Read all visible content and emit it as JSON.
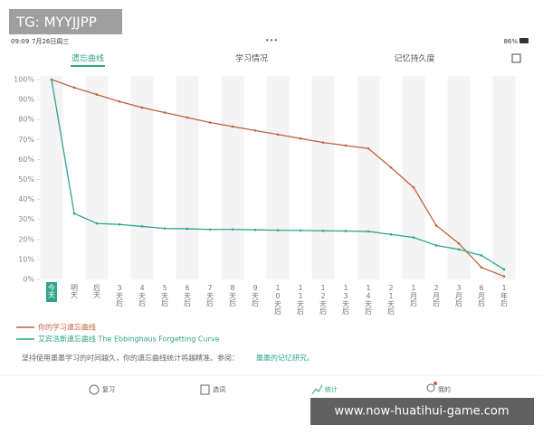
{
  "watermark_top": "TG: MYYJJPP",
  "watermark_bottom": "www.now-huatihui-game.com",
  "status_bar": {
    "time": "09:09",
    "date": "7月26日周三",
    "dots": "•••",
    "battery": "86%"
  },
  "tabs": [
    "遗忘曲线",
    "学习情况",
    "记忆持久度"
  ],
  "chart_data": {
    "type": "line",
    "categories": [
      "今天",
      "明天",
      "后天",
      "3天后",
      "4天后",
      "5天后",
      "6天后",
      "7天后",
      "8天后",
      "9天后",
      "10天后",
      "11天后",
      "12天后",
      "13天后",
      "14天后",
      "21天后",
      "1月后",
      "2月后",
      "3月后",
      "6月后",
      "1年后"
    ],
    "series": [
      {
        "name": "你的学习遗忘曲线",
        "color": "#c0643f",
        "values": [
          100,
          96,
          92.5,
          89,
          86,
          83.5,
          81,
          78.5,
          76.5,
          74.5,
          72.5,
          70.5,
          68.5,
          67,
          65.5,
          56,
          46,
          27,
          18,
          6,
          1.5
        ]
      },
      {
        "name": "艾宾浩斯遗忘曲线 The Ebbinghaus Forgetting Curve",
        "color": "#2fa58a",
        "values": [
          100,
          33,
          28,
          27.5,
          26.5,
          25.5,
          25.3,
          25,
          25,
          24.8,
          24.6,
          24.5,
          24.3,
          24.2,
          24,
          22.5,
          21,
          17,
          15,
          12,
          5
        ]
      }
    ],
    "ylim": [
      0,
      100
    ],
    "yticks": [
      {
        "value": 0,
        "label": "0%"
      },
      {
        "value": 10,
        "label": "10%"
      },
      {
        "value": 20,
        "label": "20%"
      },
      {
        "value": 30,
        "label": "30%"
      },
      {
        "value": 40,
        "label": "40%"
      },
      {
        "value": 50,
        "label": "50%"
      },
      {
        "value": 60,
        "label": "60%"
      },
      {
        "value": 70,
        "label": "70%"
      },
      {
        "value": 80,
        "label": "80%"
      },
      {
        "value": 90,
        "label": "90%"
      },
      {
        "value": 100,
        "label": "100%"
      }
    ]
  },
  "footnote": {
    "text": "坚持使用墨墨学习的时间越久，你的遗忘曲线统计将越精准。参阅：",
    "link": "墨墨的记忆研究。"
  },
  "nav": [
    "复习",
    "选词",
    "统计",
    "我的"
  ]
}
